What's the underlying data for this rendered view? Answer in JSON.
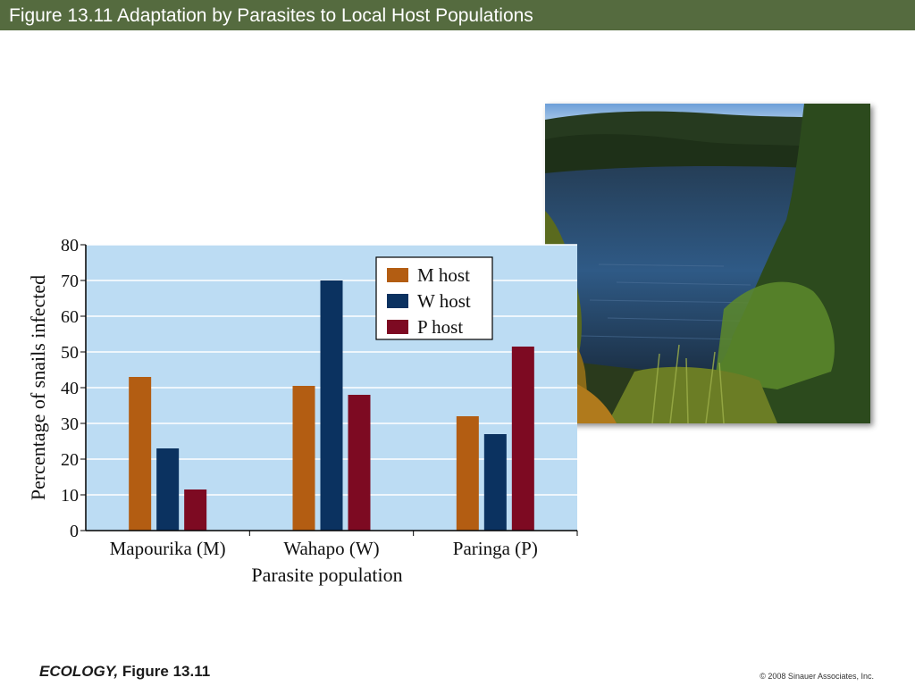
{
  "header": {
    "title": "Figure 13.11  Adaptation by Parasites to Local Host Populations"
  },
  "footer": {
    "book": "ECOLOGY,",
    "figure": "Figure 13.11",
    "copyright": "© 2008 Sinauer Associates, Inc."
  },
  "colors": {
    "header_bg": "#556b3f",
    "plot_bg": "#bcdcf3",
    "M_host": "#b35d12",
    "W_host": "#0b3260",
    "P_host": "#7d0a22"
  },
  "photo": {
    "icon": "lake-landscape-photo"
  },
  "chart_data": {
    "type": "bar",
    "title": "",
    "xlabel": "Parasite population",
    "ylabel": "Percentage of snails infected",
    "categories": [
      "Mapourika (M)",
      "Wahapo (W)",
      "Paringa (P)"
    ],
    "series": [
      {
        "name": "M host",
        "values": [
          43,
          40.5,
          32
        ]
      },
      {
        "name": "W host",
        "values": [
          23,
          70,
          27
        ]
      },
      {
        "name": "P host",
        "values": [
          11.5,
          38,
          51.5
        ]
      }
    ],
    "ylim": [
      0,
      80
    ],
    "yticks": [
      0,
      10,
      20,
      30,
      40,
      50,
      60,
      70,
      80
    ],
    "grid": true,
    "legend": "top-right"
  }
}
